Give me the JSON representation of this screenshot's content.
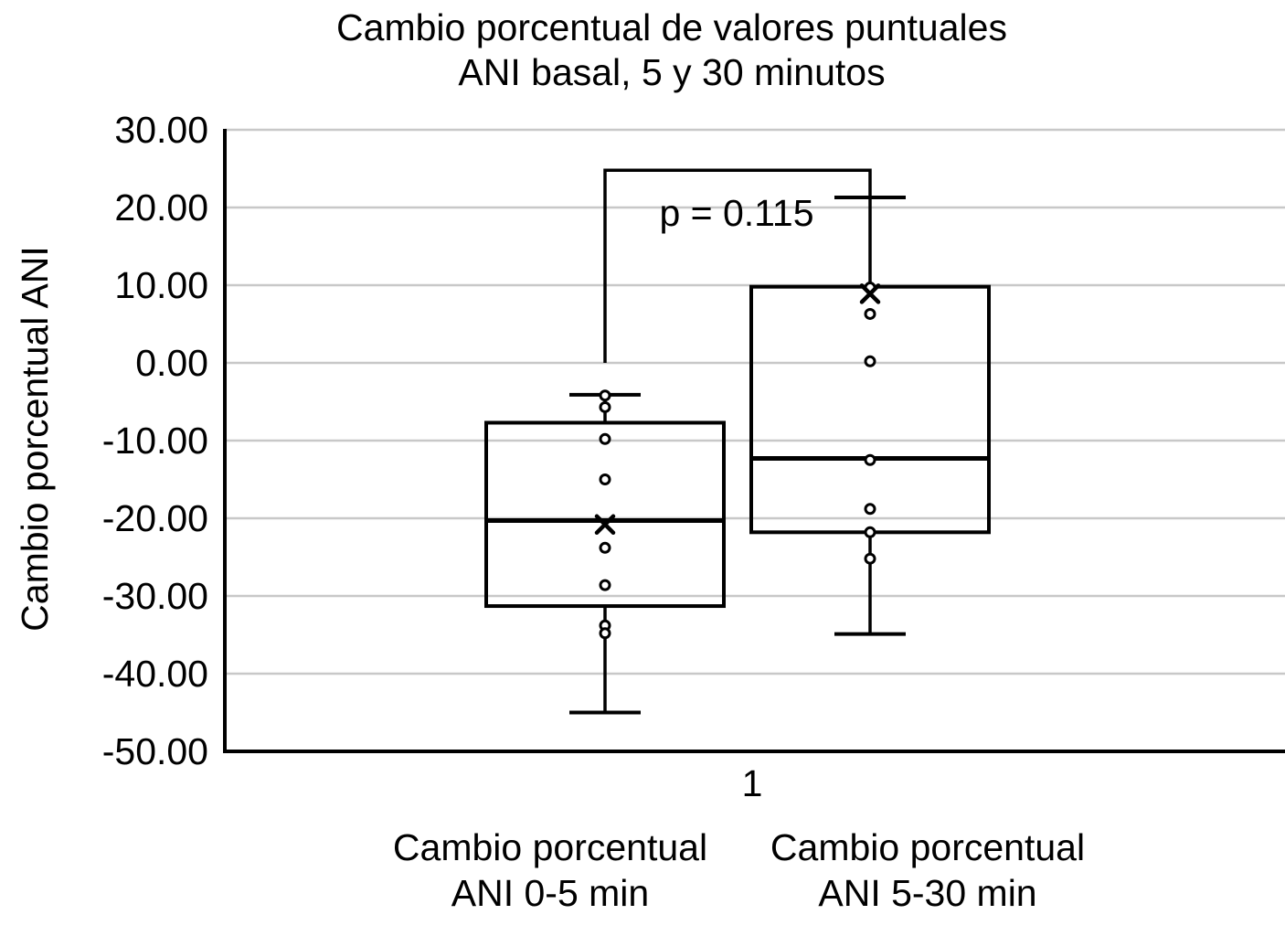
{
  "title": {
    "line1": "Cambio porcentual de valores puntuales",
    "line2": "ANI basal, 5 y 30 minutos"
  },
  "y_axis": {
    "label": "Cambio porcentual ANI",
    "tick_labels": [
      "30.00",
      "20.00",
      "10.00",
      "0.00",
      "-10.00",
      "-20.00",
      "-30.00",
      "-40.00",
      "-50.00"
    ]
  },
  "x_axis": {
    "tick_label": "1",
    "category_labels": [
      {
        "line1": "Cambio porcentual",
        "line2": "ANI 0-5 min"
      },
      {
        "line1": "Cambio porcentual",
        "line2": "ANI 5-30 min"
      }
    ]
  },
  "annotation": {
    "p_label": "p = 0.115"
  },
  "colors": {
    "ink": "#000000",
    "gridline": "#c8c8c8",
    "background": "#ffffff"
  },
  "chart_data": {
    "type": "boxplot",
    "title": "Cambio porcentual de valores puntuales ANI basal, 5 y 30 minutos",
    "xlabel": "1",
    "ylabel": "Cambio porcentual ANI",
    "ylim": [
      -50,
      30
    ],
    "ytick_step": 10,
    "grid": true,
    "series": [
      {
        "name": "Cambio porcentual ANI 0-5 min",
        "whisker_low": -45.0,
        "q1": -31.3,
        "median": -20.3,
        "q3": -7.7,
        "whisker_high": -4.1,
        "mean": -20.8,
        "points": [
          -4.2,
          -5.7,
          -9.8,
          -15.0,
          -23.8,
          -28.6,
          -33.8,
          -34.8
        ]
      },
      {
        "name": "Cambio porcentual ANI 5-30 min",
        "whisker_low": -34.9,
        "q1": -21.8,
        "median": -12.3,
        "q3": 9.8,
        "whisker_high": 21.3,
        "mean": 8.9,
        "points": [
          9.7,
          6.3,
          0.2,
          -12.5,
          -18.8,
          -21.8,
          -25.2
        ]
      }
    ],
    "significance_bracket": {
      "label": "p = 0.115",
      "top_value": 24.8,
      "left_series": 0,
      "right_series": 1,
      "left_drop_to_value": 0.0,
      "right_drop_to_value": 21.3
    }
  }
}
